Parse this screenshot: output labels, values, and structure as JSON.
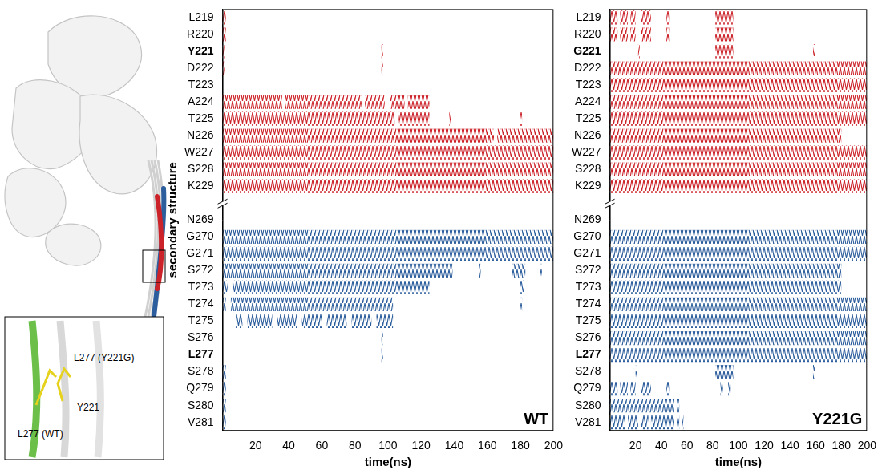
{
  "illustration": {
    "labels": [
      "L277 (Y221G)",
      "L277 (WT)",
      "Y221"
    ]
  },
  "chart_data": [
    {
      "type": "bar",
      "orientation": "horizontal",
      "panel_label": "WT",
      "y_label": "secondary structure",
      "x_label": "time(ns)",
      "categories": [
        "L219",
        "R220",
        "Y221",
        "D222",
        "T223",
        "A224",
        "T225",
        "N226",
        "W227",
        "S228",
        "K229",
        null,
        "N269",
        "G270",
        "G271",
        "S272",
        "T273",
        "T274",
        "T275",
        "S276",
        "L277",
        "S278",
        "Q279",
        "S280",
        "V281"
      ],
      "highlighted_categories": [
        "Y221",
        "L277"
      ],
      "xlim": [
        0,
        200
      ],
      "xticks": [
        20,
        40,
        60,
        80,
        100,
        120,
        140,
        160,
        180,
        200
      ],
      "series": [
        {
          "color": "#cc2229",
          "values": [
            [
              "L219",
              0,
              2
            ],
            [
              "R220",
              0,
              2
            ],
            [
              "Y221",
              0,
              1
            ],
            [
              "Y221",
              96,
              96.5
            ],
            [
              "D222",
              0,
              1
            ],
            [
              "D222",
              96,
              96.5
            ],
            [
              "A224",
              0,
              36
            ],
            [
              "A224",
              38,
              84
            ],
            [
              "A224",
              86,
              98
            ],
            [
              "A224",
              101,
              110
            ],
            [
              "A224",
              112,
              125
            ],
            [
              "T225",
              0,
              104
            ],
            [
              "T225",
              106,
              125
            ],
            [
              "T225",
              137,
              138
            ],
            [
              "T225",
              180,
              181
            ],
            [
              "N226",
              0,
              164
            ],
            [
              "N226",
              166,
              200
            ],
            [
              "W227",
              0,
              200
            ],
            [
              "S228",
              0,
              200
            ],
            [
              "K229",
              0,
              200
            ]
          ]
        },
        {
          "color": "#2c5d9c",
          "values": [
            [
              "G270",
              0,
              200
            ],
            [
              "G271",
              0,
              200
            ],
            [
              "S272",
              0,
              139
            ],
            [
              "S272",
              155,
              156
            ],
            [
              "S272",
              175,
              183
            ],
            [
              "S272",
              192,
              193
            ],
            [
              "T273",
              0,
              3
            ],
            [
              "T273",
              6,
              125
            ],
            [
              "T273",
              180,
              182
            ],
            [
              "T274",
              0,
              2
            ],
            [
              "T274",
              5,
              103
            ],
            [
              "T274",
              180,
              181
            ],
            [
              "T275",
              8,
              12
            ],
            [
              "T275",
              15,
              30
            ],
            [
              "T275",
              33,
              45
            ],
            [
              "T275",
              48,
              60
            ],
            [
              "T275",
              63,
              75
            ],
            [
              "T275",
              78,
              90
            ],
            [
              "T275",
              93,
              103
            ],
            [
              "S276",
              96,
              96.5
            ],
            [
              "L277",
              96,
              96.5
            ],
            [
              "S278",
              0,
              2
            ],
            [
              "Q279",
              0,
              2
            ],
            [
              "S280",
              0,
              2
            ],
            [
              "V281",
              0,
              2
            ]
          ]
        }
      ]
    },
    {
      "type": "bar",
      "orientation": "horizontal",
      "panel_label": "Y221G",
      "x_label": "time(ns)",
      "categories": [
        "L219",
        "R220",
        "G221",
        "D222",
        "T223",
        "A224",
        "T225",
        "N226",
        "W227",
        "S228",
        "K229",
        null,
        "N269",
        "G270",
        "G271",
        "S272",
        "T273",
        "T274",
        "T275",
        "S276",
        "L277",
        "S278",
        "Q279",
        "S280",
        "V281"
      ],
      "highlighted_categories": [
        "G221",
        "L277"
      ],
      "xlim": [
        0,
        200
      ],
      "xticks": [
        20,
        40,
        60,
        80,
        100,
        120,
        140,
        160,
        180,
        200
      ],
      "series": [
        {
          "color": "#cc2229",
          "values": [
            [
              "L219",
              0,
              6
            ],
            [
              "L219",
              8,
              14
            ],
            [
              "L219",
              16,
              20
            ],
            [
              "L219",
              24,
              32
            ],
            [
              "L219",
              44,
              46
            ],
            [
              "L219",
              82,
              96
            ],
            [
              "R220",
              0,
              6
            ],
            [
              "R220",
              8,
              14
            ],
            [
              "R220",
              16,
              20
            ],
            [
              "R220",
              24,
              32
            ],
            [
              "R220",
              44,
              46
            ],
            [
              "R220",
              82,
              96
            ],
            [
              "G221",
              22,
              22.5
            ],
            [
              "G221",
              82,
              96
            ],
            [
              "G221",
              158,
              158.5
            ],
            [
              "D222",
              0,
              200
            ],
            [
              "T223",
              0,
              200
            ],
            [
              "A224",
              0,
              200
            ],
            [
              "T225",
              0,
              200
            ],
            [
              "N226",
              0,
              180
            ],
            [
              "W227",
              0,
              200
            ],
            [
              "S228",
              0,
              200
            ],
            [
              "K229",
              0,
              200
            ]
          ]
        },
        {
          "color": "#2c5d9c",
          "values": [
            [
              "G270",
              0,
              200
            ],
            [
              "G271",
              0,
              200
            ],
            [
              "S272",
              0,
              180
            ],
            [
              "T273",
              0,
              180
            ],
            [
              "T274",
              0,
              200
            ],
            [
              "T275",
              0,
              200
            ],
            [
              "S276",
              0,
              200
            ],
            [
              "L277",
              0,
              200
            ],
            [
              "S278",
              20,
              20.5
            ],
            [
              "S278",
              82,
              96
            ],
            [
              "S278",
              158,
              158.5
            ],
            [
              "Q279",
              0,
              6
            ],
            [
              "Q279",
              8,
              14
            ],
            [
              "Q279",
              16,
              20
            ],
            [
              "Q279",
              24,
              32
            ],
            [
              "Q279",
              44,
              46
            ],
            [
              "Q279",
              86,
              88
            ],
            [
              "Q279",
              92,
              94
            ],
            [
              "S280",
              0,
              50
            ],
            [
              "S280",
              52,
              54
            ],
            [
              "V281",
              0,
              12
            ],
            [
              "V281",
              14,
              22
            ],
            [
              "V281",
              24,
              30
            ],
            [
              "V281",
              32,
              50
            ],
            [
              "V281",
              52,
              54
            ],
            [
              "V281",
              56,
              57
            ]
          ]
        }
      ]
    }
  ]
}
